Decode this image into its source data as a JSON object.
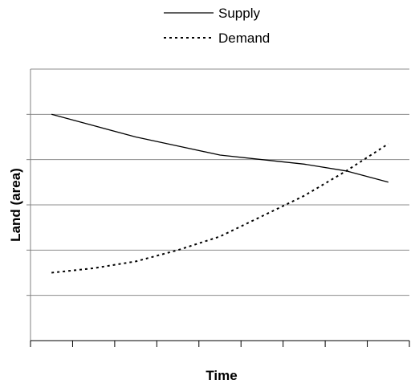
{
  "chart_data": {
    "type": "line",
    "title": "",
    "xlabel": "Time",
    "ylabel": "Land (area)",
    "x": [
      1,
      2,
      3,
      4,
      5,
      6,
      7,
      8,
      9
    ],
    "xlim": [
      0.5,
      9.5
    ],
    "ylim": [
      0,
      6
    ],
    "grid": true,
    "legend": "top-center",
    "series": [
      {
        "name": "Supply",
        "style": "solid",
        "color": "#000000",
        "values": [
          5.0,
          4.75,
          4.5,
          4.3,
          4.1,
          4.0,
          3.9,
          3.75,
          3.5
        ]
      },
      {
        "name": "Demand",
        "style": "dotted",
        "color": "#000000",
        "values": [
          1.5,
          1.6,
          1.75,
          2.0,
          2.3,
          2.75,
          3.2,
          3.75,
          4.35
        ]
      }
    ]
  }
}
